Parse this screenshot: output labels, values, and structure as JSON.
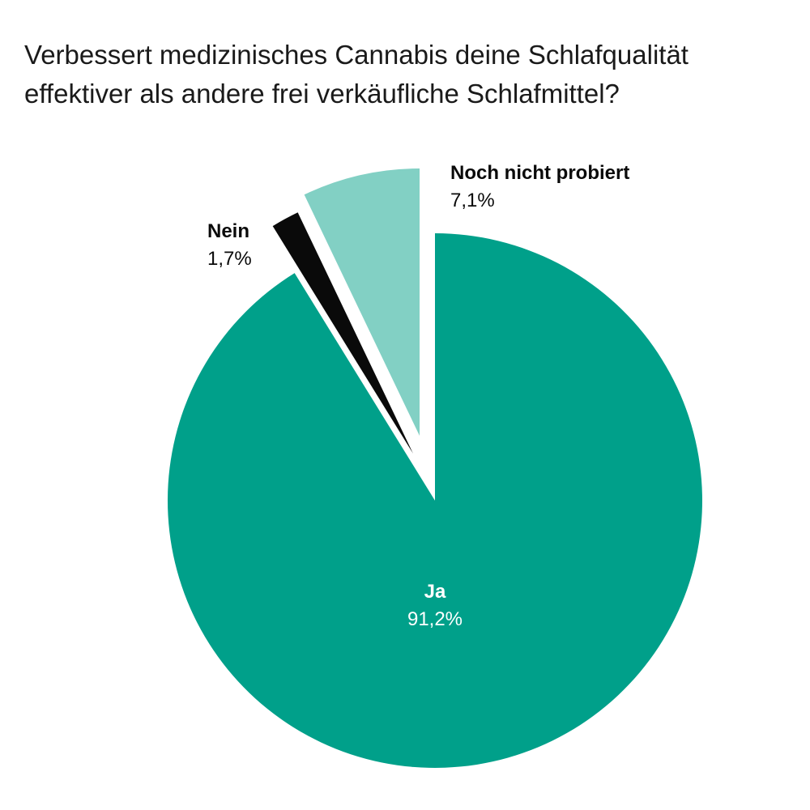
{
  "title_lines": [
    "Verbessert medizinisches Cannabis deine Schlafqualität",
    "effektiver als andere frei verkäufliche Schlafmittel?"
  ],
  "chart_data": {
    "type": "pie",
    "title": "Verbessert medizinisches Cannabis deine Schlafqualität effektiver als andere frei verkäufliche Schlafmittel?",
    "slices": [
      {
        "name": "Ja",
        "value": 91.2,
        "value_label": "91,2%",
        "color": "#00a08a"
      },
      {
        "name": "Nein",
        "value": 1.7,
        "value_label": "1,7%",
        "color": "#0a0a0a"
      },
      {
        "name": "Noch nicht probiert",
        "value": 7.1,
        "value_label": "7,1%",
        "color": "#82d0c4"
      }
    ],
    "start": "12 o'clock",
    "direction": "clockwise",
    "exploded": true
  }
}
